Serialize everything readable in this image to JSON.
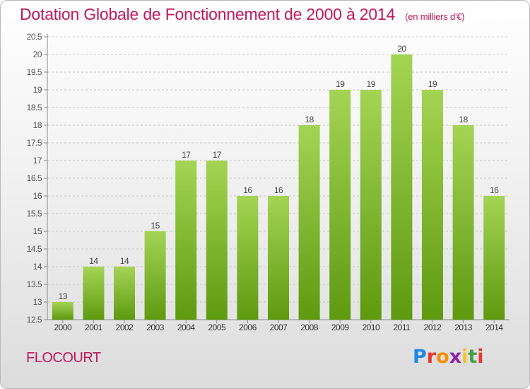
{
  "title": "Dotation Globale de Fonctionnement de 2000 à 2014",
  "unit_label": "(en milliers d'€)",
  "commune": "FLOCOURT",
  "logo": {
    "text": "Proxiti",
    "letter_colors": [
      "#1e88e5",
      "#e53935",
      "#fb8c00",
      "#8e24aa",
      "#fbc02d",
      "#43a047",
      "#e53935"
    ]
  },
  "colors": {
    "accent": "#c2185b",
    "bar_light": "#a4d454",
    "bar_dark": "#5e9a10",
    "grid": "#c8c8c8"
  },
  "chart_data": {
    "type": "bar",
    "title": "Dotation Globale de Fonctionnement de 2000 à 2014",
    "xlabel": "",
    "ylabel": "",
    "categories": [
      "2000",
      "2001",
      "2002",
      "2003",
      "2004",
      "2005",
      "2006",
      "2007",
      "2008",
      "2009",
      "2010",
      "2011",
      "2012",
      "2013",
      "2014"
    ],
    "values": [
      13,
      14,
      14,
      15,
      17,
      17,
      16,
      16,
      18,
      19,
      19,
      20,
      19,
      18,
      16
    ],
    "data_labels": [
      "13",
      "14",
      "14",
      "15",
      "17",
      "17",
      "16",
      "16",
      "18",
      "19",
      "19",
      "20",
      "19",
      "18",
      "16"
    ],
    "ylim": [
      12.5,
      20.5
    ],
    "yticks": [
      "12.5",
      "13",
      "13.5",
      "14",
      "14.5",
      "15",
      "15.5",
      "16",
      "16.5",
      "17",
      "17.5",
      "18",
      "18.5",
      "19",
      "19.5",
      "20",
      "20.5"
    ],
    "grid": true,
    "legend": "none"
  }
}
